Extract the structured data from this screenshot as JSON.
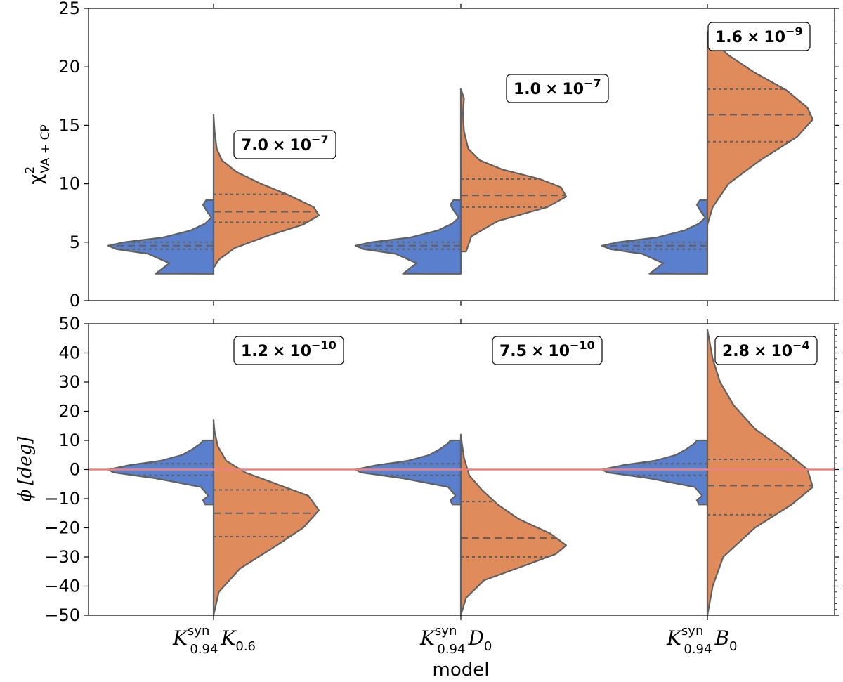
{
  "chart_data": [
    {
      "type": "violin",
      "panel": "top",
      "ylabel_symbol": "χ",
      "ylabel_sup": "2",
      "ylabel_sub": "VA + CP",
      "ylim": [
        0,
        25
      ],
      "yticks": [
        "0",
        "5",
        "10",
        "15",
        "20",
        "25"
      ],
      "ytick_values": [
        0,
        5,
        10,
        15,
        20,
        25
      ],
      "grid": false,
      "colors": {
        "left": "#5a7fcc",
        "right": "#e08b5c",
        "outline": "#606060"
      },
      "annotations": [
        {
          "mantissa": "7.0",
          "times": "×",
          "base": "10",
          "exponent": "−7"
        },
        {
          "mantissa": "1.0",
          "times": "×",
          "base": "10",
          "exponent": "−7"
        },
        {
          "mantissa": "1.6",
          "times": "×",
          "base": "10",
          "exponent": "−9"
        }
      ],
      "violins": [
        {
          "left": {
            "range": [
              2.3,
              8.6
            ],
            "median": 4.7,
            "q1": 4.4,
            "q3": 5.0,
            "profile": [
              [
                2.3,
                0.55
              ],
              [
                3.2,
                0.42
              ],
              [
                4.0,
                0.62
              ],
              [
                4.4,
                0.92
              ],
              [
                4.7,
                1.0
              ],
              [
                5.0,
                0.85
              ],
              [
                5.4,
                0.48
              ],
              [
                6.0,
                0.22
              ],
              [
                6.6,
                0.08
              ],
              [
                7.1,
                0.02
              ],
              [
                7.6,
                0.06
              ],
              [
                8.2,
                0.1
              ],
              [
                8.6,
                0.07
              ]
            ]
          },
          "right": {
            "range": [
              2.8,
              15.9
            ],
            "median": 7.6,
            "q1": 6.7,
            "q3": 9.1,
            "profile": [
              [
                2.8,
                0.0
              ],
              [
                3.5,
                0.05
              ],
              [
                4.5,
                0.2
              ],
              [
                5.5,
                0.5
              ],
              [
                6.5,
                0.85
              ],
              [
                7.3,
                1.0
              ],
              [
                8.0,
                0.95
              ],
              [
                9.0,
                0.72
              ],
              [
                10.0,
                0.45
              ],
              [
                11.0,
                0.22
              ],
              [
                12.0,
                0.08
              ],
              [
                13.0,
                0.03
              ],
              [
                14.5,
                0.01
              ],
              [
                15.9,
                0.0
              ]
            ]
          }
        },
        {
          "left": {
            "range": [
              2.3,
              8.6
            ],
            "median": 4.7,
            "q1": 4.4,
            "q3": 5.0,
            "profile": [
              [
                2.3,
                0.55
              ],
              [
                3.2,
                0.42
              ],
              [
                4.0,
                0.62
              ],
              [
                4.4,
                0.92
              ],
              [
                4.7,
                1.0
              ],
              [
                5.0,
                0.85
              ],
              [
                5.4,
                0.48
              ],
              [
                6.0,
                0.22
              ],
              [
                6.6,
                0.08
              ],
              [
                7.1,
                0.02
              ],
              [
                7.6,
                0.06
              ],
              [
                8.2,
                0.1
              ],
              [
                8.6,
                0.07
              ]
            ]
          },
          "right": {
            "range": [
              4.2,
              18.1
            ],
            "median": 9.0,
            "q1": 8.0,
            "q3": 10.4,
            "profile": [
              [
                4.2,
                0.05
              ],
              [
                5.5,
                0.1
              ],
              [
                6.8,
                0.35
              ],
              [
                8.0,
                0.82
              ],
              [
                8.9,
                1.0
              ],
              [
                9.7,
                0.95
              ],
              [
                10.4,
                0.75
              ],
              [
                11.2,
                0.4
              ],
              [
                12.0,
                0.18
              ],
              [
                13.0,
                0.07
              ],
              [
                14.5,
                0.03
              ],
              [
                16.0,
                0.02
              ],
              [
                17.3,
                0.03
              ],
              [
                18.1,
                0.0
              ]
            ]
          }
        },
        {
          "left": {
            "range": [
              2.3,
              8.6
            ],
            "median": 4.7,
            "q1": 4.4,
            "q3": 5.0,
            "profile": [
              [
                2.3,
                0.55
              ],
              [
                3.2,
                0.42
              ],
              [
                4.0,
                0.62
              ],
              [
                4.4,
                0.92
              ],
              [
                4.7,
                1.0
              ],
              [
                5.0,
                0.85
              ],
              [
                5.4,
                0.48
              ],
              [
                6.0,
                0.22
              ],
              [
                6.6,
                0.08
              ],
              [
                7.1,
                0.02
              ],
              [
                7.6,
                0.06
              ],
              [
                8.2,
                0.1
              ],
              [
                8.6,
                0.07
              ]
            ]
          },
          "right": {
            "range": [
              6.5,
              23.0
            ],
            "median": 15.9,
            "q1": 13.6,
            "q3": 18.1,
            "profile": [
              [
                6.5,
                0.0
              ],
              [
                8.0,
                0.05
              ],
              [
                10.0,
                0.2
              ],
              [
                12.0,
                0.5
              ],
              [
                14.0,
                0.85
              ],
              [
                15.5,
                1.0
              ],
              [
                16.5,
                0.95
              ],
              [
                18.0,
                0.75
              ],
              [
                19.5,
                0.45
              ],
              [
                21.0,
                0.2
              ],
              [
                22.0,
                0.08
              ],
              [
                23.0,
                0.0
              ]
            ]
          }
        }
      ]
    },
    {
      "type": "violin",
      "panel": "bottom",
      "ylabel_symbol": "ϕ",
      "ylabel_rest": "[deg]",
      "xlabel": "model",
      "ylim": [
        -50,
        50
      ],
      "yticks": [
        "−50",
        "−40",
        "−30",
        "−20",
        "−10",
        "0",
        "10",
        "20",
        "30",
        "40",
        "50"
      ],
      "ytick_values": [
        -50,
        -40,
        -30,
        -20,
        -10,
        0,
        10,
        20,
        30,
        40,
        50
      ],
      "reference_line": {
        "y": 0,
        "color": "#f08080"
      },
      "grid": false,
      "categories": [
        {
          "main": "K",
          "sup": "syn",
          "sub": "0.94",
          "second": "K",
          "second_sub": "0.6"
        },
        {
          "main": "K",
          "sup": "syn",
          "sub": "0.94",
          "second": "D",
          "second_sub": "0"
        },
        {
          "main": "K",
          "sup": "syn",
          "sub": "0.94",
          "second": "B",
          "second_sub": "0"
        }
      ],
      "annotations": [
        {
          "mantissa": "1.2",
          "times": "×",
          "base": "10",
          "exponent": "−10"
        },
        {
          "mantissa": "7.5",
          "times": "×",
          "base": "10",
          "exponent": "−10"
        },
        {
          "mantissa": "2.8",
          "times": "×",
          "base": "10",
          "exponent": "−4"
        }
      ],
      "violins": [
        {
          "left": {
            "range": [
              -12.0,
              10.0
            ],
            "median": 0.0,
            "q1": -2.0,
            "q3": 2.0,
            "profile": [
              [
                -12.0,
                0.08
              ],
              [
                -10.5,
                0.1
              ],
              [
                -9.0,
                0.05
              ],
              [
                -6.0,
                0.12
              ],
              [
                -3.0,
                0.55
              ],
              [
                -1.0,
                0.95
              ],
              [
                0.0,
                1.0
              ],
              [
                1.5,
                0.8
              ],
              [
                3.0,
                0.5
              ],
              [
                5.0,
                0.3
              ],
              [
                7.0,
                0.2
              ],
              [
                9.0,
                0.12
              ],
              [
                10.0,
                0.1
              ]
            ]
          },
          "right": {
            "range": [
              -50.0,
              17.0
            ],
            "median": -15.0,
            "q1": -23.0,
            "q3": -7.0,
            "profile": [
              [
                -50.0,
                0.0
              ],
              [
                -42.0,
                0.05
              ],
              [
                -34.0,
                0.25
              ],
              [
                -26.0,
                0.6
              ],
              [
                -20.0,
                0.85
              ],
              [
                -14.0,
                1.0
              ],
              [
                -9.0,
                0.9
              ],
              [
                -5.0,
                0.6
              ],
              [
                -1.0,
                0.3
              ],
              [
                3.0,
                0.12
              ],
              [
                8.0,
                0.04
              ],
              [
                13.0,
                0.01
              ],
              [
                17.0,
                0.0
              ]
            ]
          }
        },
        {
          "left": {
            "range": [
              -12.0,
              10.0
            ],
            "median": 0.0,
            "q1": -2.0,
            "q3": 2.0,
            "profile": [
              [
                -12.0,
                0.08
              ],
              [
                -10.5,
                0.1
              ],
              [
                -9.0,
                0.05
              ],
              [
                -6.0,
                0.12
              ],
              [
                -3.0,
                0.55
              ],
              [
                -1.0,
                0.95
              ],
              [
                0.0,
                1.0
              ],
              [
                1.5,
                0.8
              ],
              [
                3.0,
                0.5
              ],
              [
                5.0,
                0.3
              ],
              [
                7.0,
                0.2
              ],
              [
                9.0,
                0.12
              ],
              [
                10.0,
                0.1
              ]
            ]
          },
          "right": {
            "range": [
              -50.0,
              12.0
            ],
            "median": -23.5,
            "q1": -30.0,
            "q3": -11.0,
            "profile": [
              [
                -50.0,
                0.0
              ],
              [
                -44.0,
                0.05
              ],
              [
                -38.0,
                0.22
              ],
              [
                -33.0,
                0.6
              ],
              [
                -29.0,
                0.9
              ],
              [
                -26.0,
                1.0
              ],
              [
                -22.0,
                0.85
              ],
              [
                -17.0,
                0.55
              ],
              [
                -12.0,
                0.35
              ],
              [
                -7.0,
                0.2
              ],
              [
                -2.0,
                0.08
              ],
              [
                4.0,
                0.03
              ],
              [
                9.0,
                0.01
              ],
              [
                12.0,
                0.0
              ]
            ]
          }
        },
        {
          "left": {
            "range": [
              -12.0,
              10.0
            ],
            "median": 0.0,
            "q1": -2.0,
            "q3": 2.0,
            "profile": [
              [
                -12.0,
                0.08
              ],
              [
                -10.5,
                0.1
              ],
              [
                -9.0,
                0.05
              ],
              [
                -6.0,
                0.12
              ],
              [
                -3.0,
                0.55
              ],
              [
                -1.0,
                0.95
              ],
              [
                0.0,
                1.0
              ],
              [
                1.5,
                0.8
              ],
              [
                3.0,
                0.5
              ],
              [
                5.0,
                0.3
              ],
              [
                7.0,
                0.2
              ],
              [
                9.0,
                0.12
              ],
              [
                10.0,
                0.1
              ]
            ]
          },
          "right": {
            "range": [
              -50.0,
              48.0
            ],
            "median": -5.5,
            "q1": -15.5,
            "q3": 3.5,
            "profile": [
              [
                -50.0,
                0.0
              ],
              [
                -40.0,
                0.05
              ],
              [
                -30.0,
                0.15
              ],
              [
                -20.0,
                0.45
              ],
              [
                -12.0,
                0.8
              ],
              [
                -6.0,
                1.0
              ],
              [
                0.0,
                0.95
              ],
              [
                6.0,
                0.75
              ],
              [
                14.0,
                0.45
              ],
              [
                22.0,
                0.25
              ],
              [
                30.0,
                0.12
              ],
              [
                38.0,
                0.05
              ],
              [
                44.0,
                0.02
              ],
              [
                48.0,
                0.0
              ]
            ]
          }
        }
      ]
    }
  ]
}
